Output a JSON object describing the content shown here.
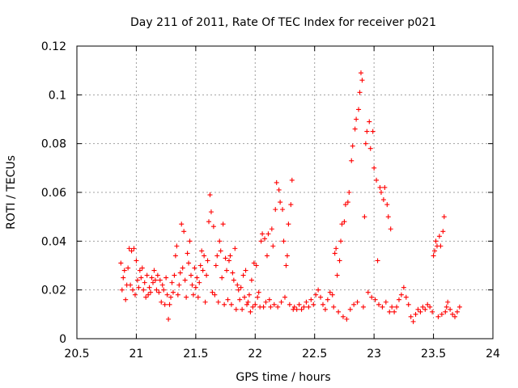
{
  "chart_data": {
    "type": "scatter",
    "title": "Day 211 of 2011, Rate Of TEC Index for receiver p021",
    "xlabel": "GPS time / hours",
    "ylabel": "ROTI / TECUs",
    "xlim": [
      20.5,
      24
    ],
    "ylim": [
      0,
      0.12
    ],
    "x_ticks": [
      "20.5",
      "21",
      "21.5",
      "22",
      "22.5",
      "23",
      "23.5",
      "24"
    ],
    "y_ticks": [
      "0",
      "0.02",
      "0.04",
      "0.06",
      "0.08",
      "0.1",
      "0.12"
    ],
    "grid": true,
    "marker": "+",
    "color": "#ff0000",
    "series": [
      {
        "name": "ROTI",
        "points": [
          [
            20.87,
            0.031
          ],
          [
            20.88,
            0.02
          ],
          [
            20.89,
            0.025
          ],
          [
            20.9,
            0.028
          ],
          [
            20.91,
            0.016
          ],
          [
            20.92,
            0.022
          ],
          [
            20.93,
            0.029
          ],
          [
            20.94,
            0.037
          ],
          [
            20.95,
            0.022
          ],
          [
            20.96,
            0.036
          ],
          [
            20.97,
            0.02
          ],
          [
            20.98,
            0.037
          ],
          [
            20.99,
            0.018
          ],
          [
            21.0,
            0.032
          ],
          [
            21.01,
            0.024
          ],
          [
            21.02,
            0.021
          ],
          [
            21.03,
            0.028
          ],
          [
            21.04,
            0.025
          ],
          [
            21.05,
            0.029
          ],
          [
            21.06,
            0.02
          ],
          [
            21.07,
            0.023
          ],
          [
            21.08,
            0.017
          ],
          [
            21.09,
            0.026
          ],
          [
            21.1,
            0.018
          ],
          [
            21.11,
            0.021
          ],
          [
            21.12,
            0.019
          ],
          [
            21.13,
            0.025
          ],
          [
            21.14,
            0.023
          ],
          [
            21.15,
            0.028
          ],
          [
            21.16,
            0.024
          ],
          [
            21.17,
            0.02
          ],
          [
            21.18,
            0.026
          ],
          [
            21.19,
            0.019
          ],
          [
            21.2,
            0.024
          ],
          [
            21.21,
            0.015
          ],
          [
            21.22,
            0.022
          ],
          [
            21.23,
            0.02
          ],
          [
            21.24,
            0.014
          ],
          [
            21.25,
            0.025
          ],
          [
            21.26,
            0.018
          ],
          [
            21.27,
            0.008
          ],
          [
            21.28,
            0.014
          ],
          [
            21.29,
            0.017
          ],
          [
            21.3,
            0.023
          ],
          [
            21.31,
            0.019
          ],
          [
            21.32,
            0.026
          ],
          [
            21.33,
            0.034
          ],
          [
            21.34,
            0.038
          ],
          [
            21.35,
            0.018
          ],
          [
            21.36,
            0.022
          ],
          [
            21.37,
            0.027
          ],
          [
            21.38,
            0.047
          ],
          [
            21.39,
            0.029
          ],
          [
            21.4,
            0.044
          ],
          [
            21.41,
            0.024
          ],
          [
            21.42,
            0.017
          ],
          [
            21.43,
            0.035
          ],
          [
            21.44,
            0.031
          ],
          [
            21.45,
            0.04
          ],
          [
            21.46,
            0.026
          ],
          [
            21.47,
            0.022
          ],
          [
            21.48,
            0.018
          ],
          [
            21.49,
            0.029
          ],
          [
            21.5,
            0.021
          ],
          [
            21.51,
            0.025
          ],
          [
            21.52,
            0.017
          ],
          [
            21.53,
            0.023
          ],
          [
            21.54,
            0.03
          ],
          [
            21.55,
            0.036
          ],
          [
            21.56,
            0.028
          ],
          [
            21.57,
            0.034
          ],
          [
            21.58,
            0.015
          ],
          [
            21.59,
            0.026
          ],
          [
            21.6,
            0.032
          ],
          [
            21.61,
            0.048
          ],
          [
            21.62,
            0.059
          ],
          [
            21.63,
            0.052
          ],
          [
            21.64,
            0.019
          ],
          [
            21.65,
            0.046
          ],
          [
            21.66,
            0.018
          ],
          [
            21.67,
            0.03
          ],
          [
            21.68,
            0.034
          ],
          [
            21.69,
            0.015
          ],
          [
            21.7,
            0.04
          ],
          [
            21.71,
            0.036
          ],
          [
            21.72,
            0.025
          ],
          [
            21.73,
            0.047
          ],
          [
            21.74,
            0.014
          ],
          [
            21.75,
            0.033
          ],
          [
            21.76,
            0.028
          ],
          [
            21.77,
            0.016
          ],
          [
            21.78,
            0.032
          ],
          [
            21.79,
            0.034
          ],
          [
            21.8,
            0.014
          ],
          [
            21.81,
            0.027
          ],
          [
            21.82,
            0.024
          ],
          [
            21.83,
            0.037
          ],
          [
            21.84,
            0.012
          ],
          [
            21.85,
            0.022
          ],
          [
            21.86,
            0.02
          ],
          [
            21.87,
            0.016
          ],
          [
            21.88,
            0.021
          ],
          [
            21.89,
            0.012
          ],
          [
            21.9,
            0.026
          ],
          [
            21.91,
            0.017
          ],
          [
            21.92,
            0.028
          ],
          [
            21.93,
            0.014
          ],
          [
            21.94,
            0.015
          ],
          [
            21.95,
            0.018
          ],
          [
            21.96,
            0.011
          ],
          [
            21.97,
            0.024
          ],
          [
            21.98,
            0.013
          ],
          [
            21.99,
            0.031
          ],
          [
            22.0,
            0.014
          ],
          [
            22.01,
            0.03
          ],
          [
            22.02,
            0.017
          ],
          [
            22.03,
            0.019
          ],
          [
            22.04,
            0.013
          ],
          [
            22.05,
            0.04
          ],
          [
            22.06,
            0.043
          ],
          [
            22.07,
            0.013
          ],
          [
            22.08,
            0.041
          ],
          [
            22.09,
            0.015
          ],
          [
            22.1,
            0.034
          ],
          [
            22.11,
            0.043
          ],
          [
            22.12,
            0.016
          ],
          [
            22.13,
            0.013
          ],
          [
            22.14,
            0.045
          ],
          [
            22.15,
            0.038
          ],
          [
            22.16,
            0.014
          ],
          [
            22.17,
            0.053
          ],
          [
            22.18,
            0.064
          ],
          [
            22.19,
            0.013
          ],
          [
            22.2,
            0.061
          ],
          [
            22.21,
            0.056
          ],
          [
            22.22,
            0.015
          ],
          [
            22.23,
            0.053
          ],
          [
            22.24,
            0.04
          ],
          [
            22.25,
            0.017
          ],
          [
            22.26,
            0.03
          ],
          [
            22.27,
            0.034
          ],
          [
            22.28,
            0.047
          ],
          [
            22.29,
            0.014
          ],
          [
            22.3,
            0.055
          ],
          [
            22.31,
            0.065
          ],
          [
            22.32,
            0.012
          ],
          [
            22.33,
            0.013
          ],
          [
            22.35,
            0.012
          ],
          [
            22.37,
            0.014
          ],
          [
            22.39,
            0.012
          ],
          [
            22.41,
            0.013
          ],
          [
            22.43,
            0.015
          ],
          [
            22.45,
            0.013
          ],
          [
            22.47,
            0.016
          ],
          [
            22.49,
            0.014
          ],
          [
            22.51,
            0.018
          ],
          [
            22.53,
            0.02
          ],
          [
            22.55,
            0.017
          ],
          [
            22.57,
            0.014
          ],
          [
            22.59,
            0.012
          ],
          [
            22.61,
            0.016
          ],
          [
            22.63,
            0.019
          ],
          [
            22.65,
            0.018
          ],
          [
            22.66,
            0.013
          ],
          [
            22.67,
            0.035
          ],
          [
            22.68,
            0.037
          ],
          [
            22.69,
            0.026
          ],
          [
            22.7,
            0.011
          ],
          [
            22.71,
            0.032
          ],
          [
            22.72,
            0.04
          ],
          [
            22.73,
            0.047
          ],
          [
            22.74,
            0.009
          ],
          [
            22.75,
            0.048
          ],
          [
            22.76,
            0.055
          ],
          [
            22.77,
            0.008
          ],
          [
            22.78,
            0.056
          ],
          [
            22.79,
            0.06
          ],
          [
            22.8,
            0.012
          ],
          [
            22.81,
            0.073
          ],
          [
            22.82,
            0.079
          ],
          [
            22.83,
            0.014
          ],
          [
            22.84,
            0.086
          ],
          [
            22.85,
            0.09
          ],
          [
            22.86,
            0.015
          ],
          [
            22.87,
            0.094
          ],
          [
            22.88,
            0.101
          ],
          [
            22.89,
            0.109
          ],
          [
            22.9,
            0.106
          ],
          [
            22.91,
            0.013
          ],
          [
            22.92,
            0.05
          ],
          [
            22.93,
            0.08
          ],
          [
            22.94,
            0.085
          ],
          [
            22.95,
            0.019
          ],
          [
            22.96,
            0.089
          ],
          [
            22.97,
            0.078
          ],
          [
            22.98,
            0.017
          ],
          [
            22.99,
            0.085
          ],
          [
            23.0,
            0.07
          ],
          [
            23.01,
            0.016
          ],
          [
            23.02,
            0.065
          ],
          [
            23.03,
            0.032
          ],
          [
            23.04,
            0.014
          ],
          [
            23.05,
            0.062
          ],
          [
            23.06,
            0.06
          ],
          [
            23.07,
            0.013
          ],
          [
            23.08,
            0.057
          ],
          [
            23.09,
            0.062
          ],
          [
            23.1,
            0.015
          ],
          [
            23.11,
            0.055
          ],
          [
            23.12,
            0.05
          ],
          [
            23.13,
            0.011
          ],
          [
            23.14,
            0.045
          ],
          [
            23.15,
            0.013
          ],
          [
            23.17,
            0.011
          ],
          [
            23.19,
            0.013
          ],
          [
            23.21,
            0.016
          ],
          [
            23.23,
            0.018
          ],
          [
            23.25,
            0.021
          ],
          [
            23.27,
            0.017
          ],
          [
            23.29,
            0.014
          ],
          [
            23.31,
            0.009
          ],
          [
            23.33,
            0.007
          ],
          [
            23.35,
            0.01
          ],
          [
            23.37,
            0.012
          ],
          [
            23.39,
            0.011
          ],
          [
            23.41,
            0.013
          ],
          [
            23.43,
            0.012
          ],
          [
            23.45,
            0.014
          ],
          [
            23.47,
            0.013
          ],
          [
            23.49,
            0.011
          ],
          [
            23.5,
            0.034
          ],
          [
            23.51,
            0.036
          ],
          [
            23.52,
            0.04
          ],
          [
            23.53,
            0.038
          ],
          [
            23.54,
            0.009
          ],
          [
            23.55,
            0.042
          ],
          [
            23.56,
            0.038
          ],
          [
            23.57,
            0.01
          ],
          [
            23.58,
            0.044
          ],
          [
            23.59,
            0.05
          ],
          [
            23.6,
            0.011
          ],
          [
            23.61,
            0.013
          ],
          [
            23.62,
            0.015
          ],
          [
            23.64,
            0.012
          ],
          [
            23.66,
            0.01
          ],
          [
            23.68,
            0.009
          ],
          [
            23.7,
            0.011
          ],
          [
            23.72,
            0.013
          ]
        ]
      }
    ]
  }
}
